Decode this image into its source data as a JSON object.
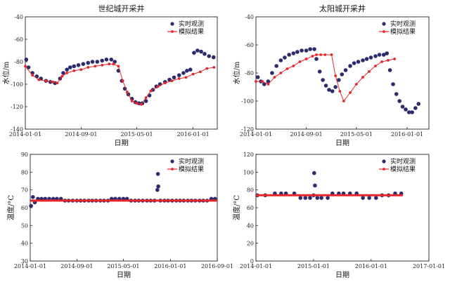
{
  "colors": {
    "observed": "#2b2b6e",
    "simulated": "#e8262a",
    "axis": "#222222"
  },
  "chart_data": [
    {
      "type": "scatter",
      "title": "世纪城开采井",
      "xlabel": "日期",
      "ylabel": "水位/m",
      "xlim": [
        "2014-01-01",
        "2016-04-15"
      ],
      "ylim": [
        -140,
        -40
      ],
      "yticks": [
        -140,
        -120,
        -100,
        -80,
        -60,
        -40
      ],
      "xticks": [
        "2014-01-01",
        "2014-09-01",
        "2015-05-01",
        "2016-01-01"
      ],
      "grid": false,
      "legend": "top-right",
      "series": [
        {
          "name": "实时观测",
          "style": "markers",
          "x": [
            "2014-01-05",
            "2014-01-15",
            "2014-02-01",
            "2014-02-20",
            "2014-03-10",
            "2014-04-01",
            "2014-04-20",
            "2014-05-10",
            "2014-06-01",
            "2014-06-15",
            "2014-07-01",
            "2014-07-15",
            "2014-08-01",
            "2014-08-20",
            "2014-09-10",
            "2014-10-01",
            "2014-10-20",
            "2014-11-10",
            "2014-12-01",
            "2014-12-20",
            "2015-01-10",
            "2015-01-25",
            "2015-02-10",
            "2015-02-25",
            "2015-03-10",
            "2015-03-25",
            "2015-04-10",
            "2015-04-25",
            "2015-05-10",
            "2015-05-25",
            "2015-06-10",
            "2015-06-25",
            "2015-07-10",
            "2015-07-25",
            "2015-08-10",
            "2015-09-01",
            "2015-09-20",
            "2015-10-10",
            "2015-11-01",
            "2015-11-20",
            "2015-12-05",
            "2015-12-20",
            "2016-01-05",
            "2016-01-20",
            "2016-02-05",
            "2016-02-20",
            "2016-03-10",
            "2016-03-30"
          ],
          "y": [
            -78,
            -85,
            -90,
            -93,
            -95,
            -97,
            -98,
            -99,
            -95,
            -90,
            -87,
            -85,
            -84,
            -83,
            -82,
            -81,
            -80,
            -80,
            -79,
            -78,
            -78,
            -80,
            -88,
            -97,
            -104,
            -109,
            -113,
            -116,
            -117,
            -117,
            -115,
            -110,
            -105,
            -102,
            -100,
            -98,
            -96,
            -94,
            -92,
            -90,
            -88,
            -87,
            -72,
            -70,
            -71,
            -73,
            -75,
            -76
          ]
        },
        {
          "name": "模拟结果",
          "style": "line-markers",
          "x": [
            "2014-01-01",
            "2014-02-01",
            "2014-03-01",
            "2014-04-01",
            "2014-05-01",
            "2014-05-20",
            "2014-06-10",
            "2014-07-01",
            "2014-08-01",
            "2014-09-01",
            "2014-10-01",
            "2014-11-01",
            "2014-12-01",
            "2015-01-01",
            "2015-01-20",
            "2015-02-10",
            "2015-03-01",
            "2015-03-20",
            "2015-04-10",
            "2015-05-01",
            "2015-05-20",
            "2015-06-10",
            "2015-07-01",
            "2015-08-01",
            "2015-09-01",
            "2015-10-01",
            "2015-11-01",
            "2015-12-01",
            "2016-01-01",
            "2016-02-01",
            "2016-03-01",
            "2016-04-01"
          ],
          "y": [
            -84,
            -92,
            -96,
            -97,
            -98,
            -99,
            -93,
            -90,
            -88,
            -87,
            -85,
            -84,
            -83,
            -82,
            -82,
            -84,
            -97,
            -107,
            -115,
            -117,
            -118,
            -112,
            -106,
            -102,
            -99,
            -97,
            -95,
            -94,
            -91,
            -89,
            -86,
            -85
          ]
        }
      ]
    },
    {
      "type": "scatter",
      "title": "太阳城开采井",
      "xlabel": "日期",
      "ylabel": "水位/m",
      "xlim": [
        "2014-01-01",
        "2016-04-15"
      ],
      "ylim": [
        -120,
        -40
      ],
      "yticks": [
        -120,
        -100,
        -80,
        -60,
        -40
      ],
      "xticks": [
        "2014-01-01",
        "2014-09-01",
        "2015-05-01",
        "2016-01-01"
      ],
      "grid": false,
      "legend": "top-right",
      "series": [
        {
          "name": "实时观测",
          "style": "markers",
          "x": [
            "2014-01-10",
            "2014-01-25",
            "2014-02-10",
            "2014-03-01",
            "2014-03-20",
            "2014-04-10",
            "2014-05-01",
            "2014-05-20",
            "2014-06-10",
            "2014-07-01",
            "2014-07-20",
            "2014-08-10",
            "2014-09-01",
            "2014-09-20",
            "2014-10-10",
            "2014-10-20",
            "2014-11-05",
            "2014-11-20",
            "2014-12-05",
            "2014-12-20",
            "2015-01-05",
            "2015-01-20",
            "2015-02-05",
            "2015-02-20",
            "2015-03-10",
            "2015-04-01",
            "2015-04-20",
            "2015-05-10",
            "2015-06-01",
            "2015-06-20",
            "2015-07-10",
            "2015-08-01",
            "2015-08-20",
            "2015-09-10",
            "2015-09-25",
            "2015-10-10",
            "2015-10-25",
            "2015-11-10",
            "2015-11-25",
            "2015-12-10",
            "2015-12-25",
            "2016-01-10",
            "2016-01-25",
            "2016-02-10",
            "2016-02-25"
          ],
          "y": [
            -83,
            -86,
            -88,
            -86,
            -80,
            -75,
            -71,
            -69,
            -67,
            -66,
            -65,
            -64,
            -64,
            -63,
            -63,
            -70,
            -79,
            -85,
            -89,
            -92,
            -93,
            -90,
            -85,
            -81,
            -78,
            -75,
            -73,
            -72,
            -71,
            -70,
            -69,
            -68,
            -67,
            -67,
            -66,
            -78,
            -88,
            -95,
            -100,
            -104,
            -106,
            -108,
            -108,
            -105,
            -102
          ]
        },
        {
          "name": "模拟结果",
          "style": "line-markers",
          "x": [
            "2014-01-01",
            "2014-02-01",
            "2014-03-01",
            "2014-04-01",
            "2014-05-01",
            "2014-06-01",
            "2014-07-01",
            "2014-08-01",
            "2014-09-01",
            "2014-10-01",
            "2014-10-20",
            "2014-11-10",
            "2014-12-01",
            "2015-01-01",
            "2015-01-20",
            "2015-02-10",
            "2015-03-01",
            "2015-04-01",
            "2015-05-01",
            "2015-06-01",
            "2015-07-01",
            "2015-08-01",
            "2015-09-01",
            "2015-10-01",
            "2015-11-01"
          ],
          "y": [
            -86,
            -86,
            -88,
            -83,
            -80,
            -77,
            -75,
            -72,
            -70,
            -68,
            -67,
            -67,
            -67,
            -67,
            -82,
            -93,
            -100,
            -94,
            -88,
            -83,
            -79,
            -75,
            -72,
            -71,
            -70
          ]
        }
      ]
    },
    {
      "type": "scatter",
      "title": "",
      "xlabel": "日期",
      "ylabel": "温度/°C",
      "xlim": [
        "2014-01-01",
        "2016-09-01"
      ],
      "ylim": [
        30,
        90
      ],
      "yticks": [
        30,
        40,
        50,
        60,
        70,
        80,
        90
      ],
      "xticks": [
        "2014-01-01",
        "2014-09-01",
        "2015-05-01",
        "2016-01-01",
        "2016-09-01"
      ],
      "grid": false,
      "legend": "top-right",
      "series": [
        {
          "name": "实时观测",
          "style": "markers",
          "x": [
            "2014-01-05",
            "2014-01-15",
            "2014-01-25",
            "2014-02-10",
            "2014-03-01",
            "2014-03-20",
            "2014-04-10",
            "2014-05-01",
            "2014-05-20",
            "2014-06-10",
            "2014-07-01",
            "2014-07-20",
            "2014-08-10",
            "2014-09-01",
            "2014-09-20",
            "2014-10-10",
            "2014-11-01",
            "2014-11-20",
            "2014-12-10",
            "2015-01-01",
            "2015-01-20",
            "2015-02-10",
            "2015-03-01",
            "2015-03-20",
            "2015-04-10",
            "2015-05-01",
            "2015-05-20",
            "2015-06-10",
            "2015-07-01",
            "2015-07-20",
            "2015-08-10",
            "2015-09-01",
            "2015-09-20",
            "2015-10-10",
            "2015-10-25",
            "2015-10-28",
            "2015-10-30",
            "2015-11-10",
            "2015-12-01",
            "2015-12-20",
            "2016-01-10",
            "2016-02-01",
            "2016-02-20",
            "2016-03-10",
            "2016-04-01",
            "2016-04-20",
            "2016-05-10",
            "2016-06-01",
            "2016-06-20",
            "2016-07-10",
            "2016-08-01",
            "2016-08-20"
          ],
          "y": [
            61,
            66,
            63,
            65,
            65,
            65,
            65,
            65,
            65,
            65,
            64,
            64,
            64,
            64,
            64,
            64,
            64,
            64,
            64,
            64,
            64,
            64,
            65,
            65,
            65,
            65,
            65,
            64,
            64,
            64,
            64,
            64,
            64,
            64,
            70,
            79,
            72,
            64,
            64,
            64,
            64,
            64,
            64,
            64,
            64,
            64,
            64,
            64,
            64,
            64,
            65,
            65
          ]
        },
        {
          "name": "模拟结果",
          "style": "line",
          "x": [
            "2014-01-01",
            "2016-09-01"
          ],
          "y": [
            64,
            64
          ]
        }
      ]
    },
    {
      "type": "scatter",
      "title": "",
      "xlabel": "日期",
      "ylabel": "温度/°C",
      "xlim": [
        "2014-01-01",
        "2017-01-01"
      ],
      "ylim": [
        0,
        120
      ],
      "yticks": [
        0,
        20,
        40,
        60,
        80,
        100,
        120
      ],
      "xticks": [
        "2014-01-01",
        "2015-01-01",
        "2016-01-01",
        "2017-01-01"
      ],
      "grid": false,
      "legend": "top-right",
      "series": [
        {
          "name": "实时观测",
          "style": "markers",
          "x": [
            "2014-01-10",
            "2014-03-01",
            "2014-05-01",
            "2014-06-10",
            "2014-07-10",
            "2014-09-01",
            "2014-10-10",
            "2014-11-10",
            "2014-12-10",
            "2015-01-01",
            "2015-01-05",
            "2015-01-10",
            "2015-01-25",
            "2015-02-20",
            "2015-04-01",
            "2015-05-01",
            "2015-06-10",
            "2015-07-10",
            "2015-08-20",
            "2015-10-01",
            "2015-11-10",
            "2015-12-20",
            "2016-02-01",
            "2016-03-10",
            "2016-04-20",
            "2016-06-01",
            "2016-07-10"
          ],
          "y": [
            74,
            74,
            76,
            76,
            76,
            76,
            71,
            71,
            71,
            74,
            99,
            85,
            71,
            71,
            71,
            76,
            76,
            76,
            76,
            76,
            71,
            71,
            71,
            74,
            74,
            76,
            76
          ]
        },
        {
          "name": "模拟结果",
          "style": "line",
          "x": [
            "2014-01-01",
            "2016-07-20"
          ],
          "y": [
            74,
            74
          ]
        }
      ]
    }
  ]
}
